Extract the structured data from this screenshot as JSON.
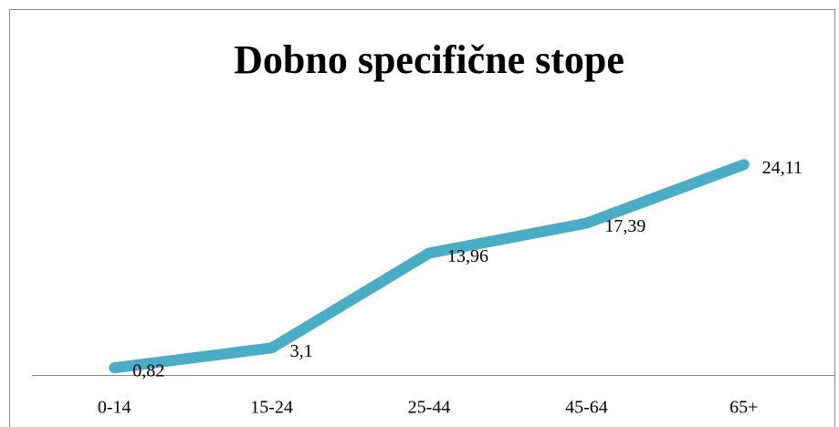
{
  "chart_data": {
    "type": "line",
    "title": "Dobno specifične stope",
    "categories": [
      "0-14",
      "15-24",
      "25-44",
      "45-64",
      "65+"
    ],
    "series": [
      {
        "name": "Dobno specifične stope",
        "color": "#4bacc6",
        "values": [
          0.82,
          3.1,
          13.96,
          17.39,
          24.11
        ],
        "value_labels": [
          "0,82",
          "3,1",
          "13,96",
          "17,39",
          "24,11"
        ]
      }
    ],
    "ylim": [
      0,
      30
    ]
  }
}
